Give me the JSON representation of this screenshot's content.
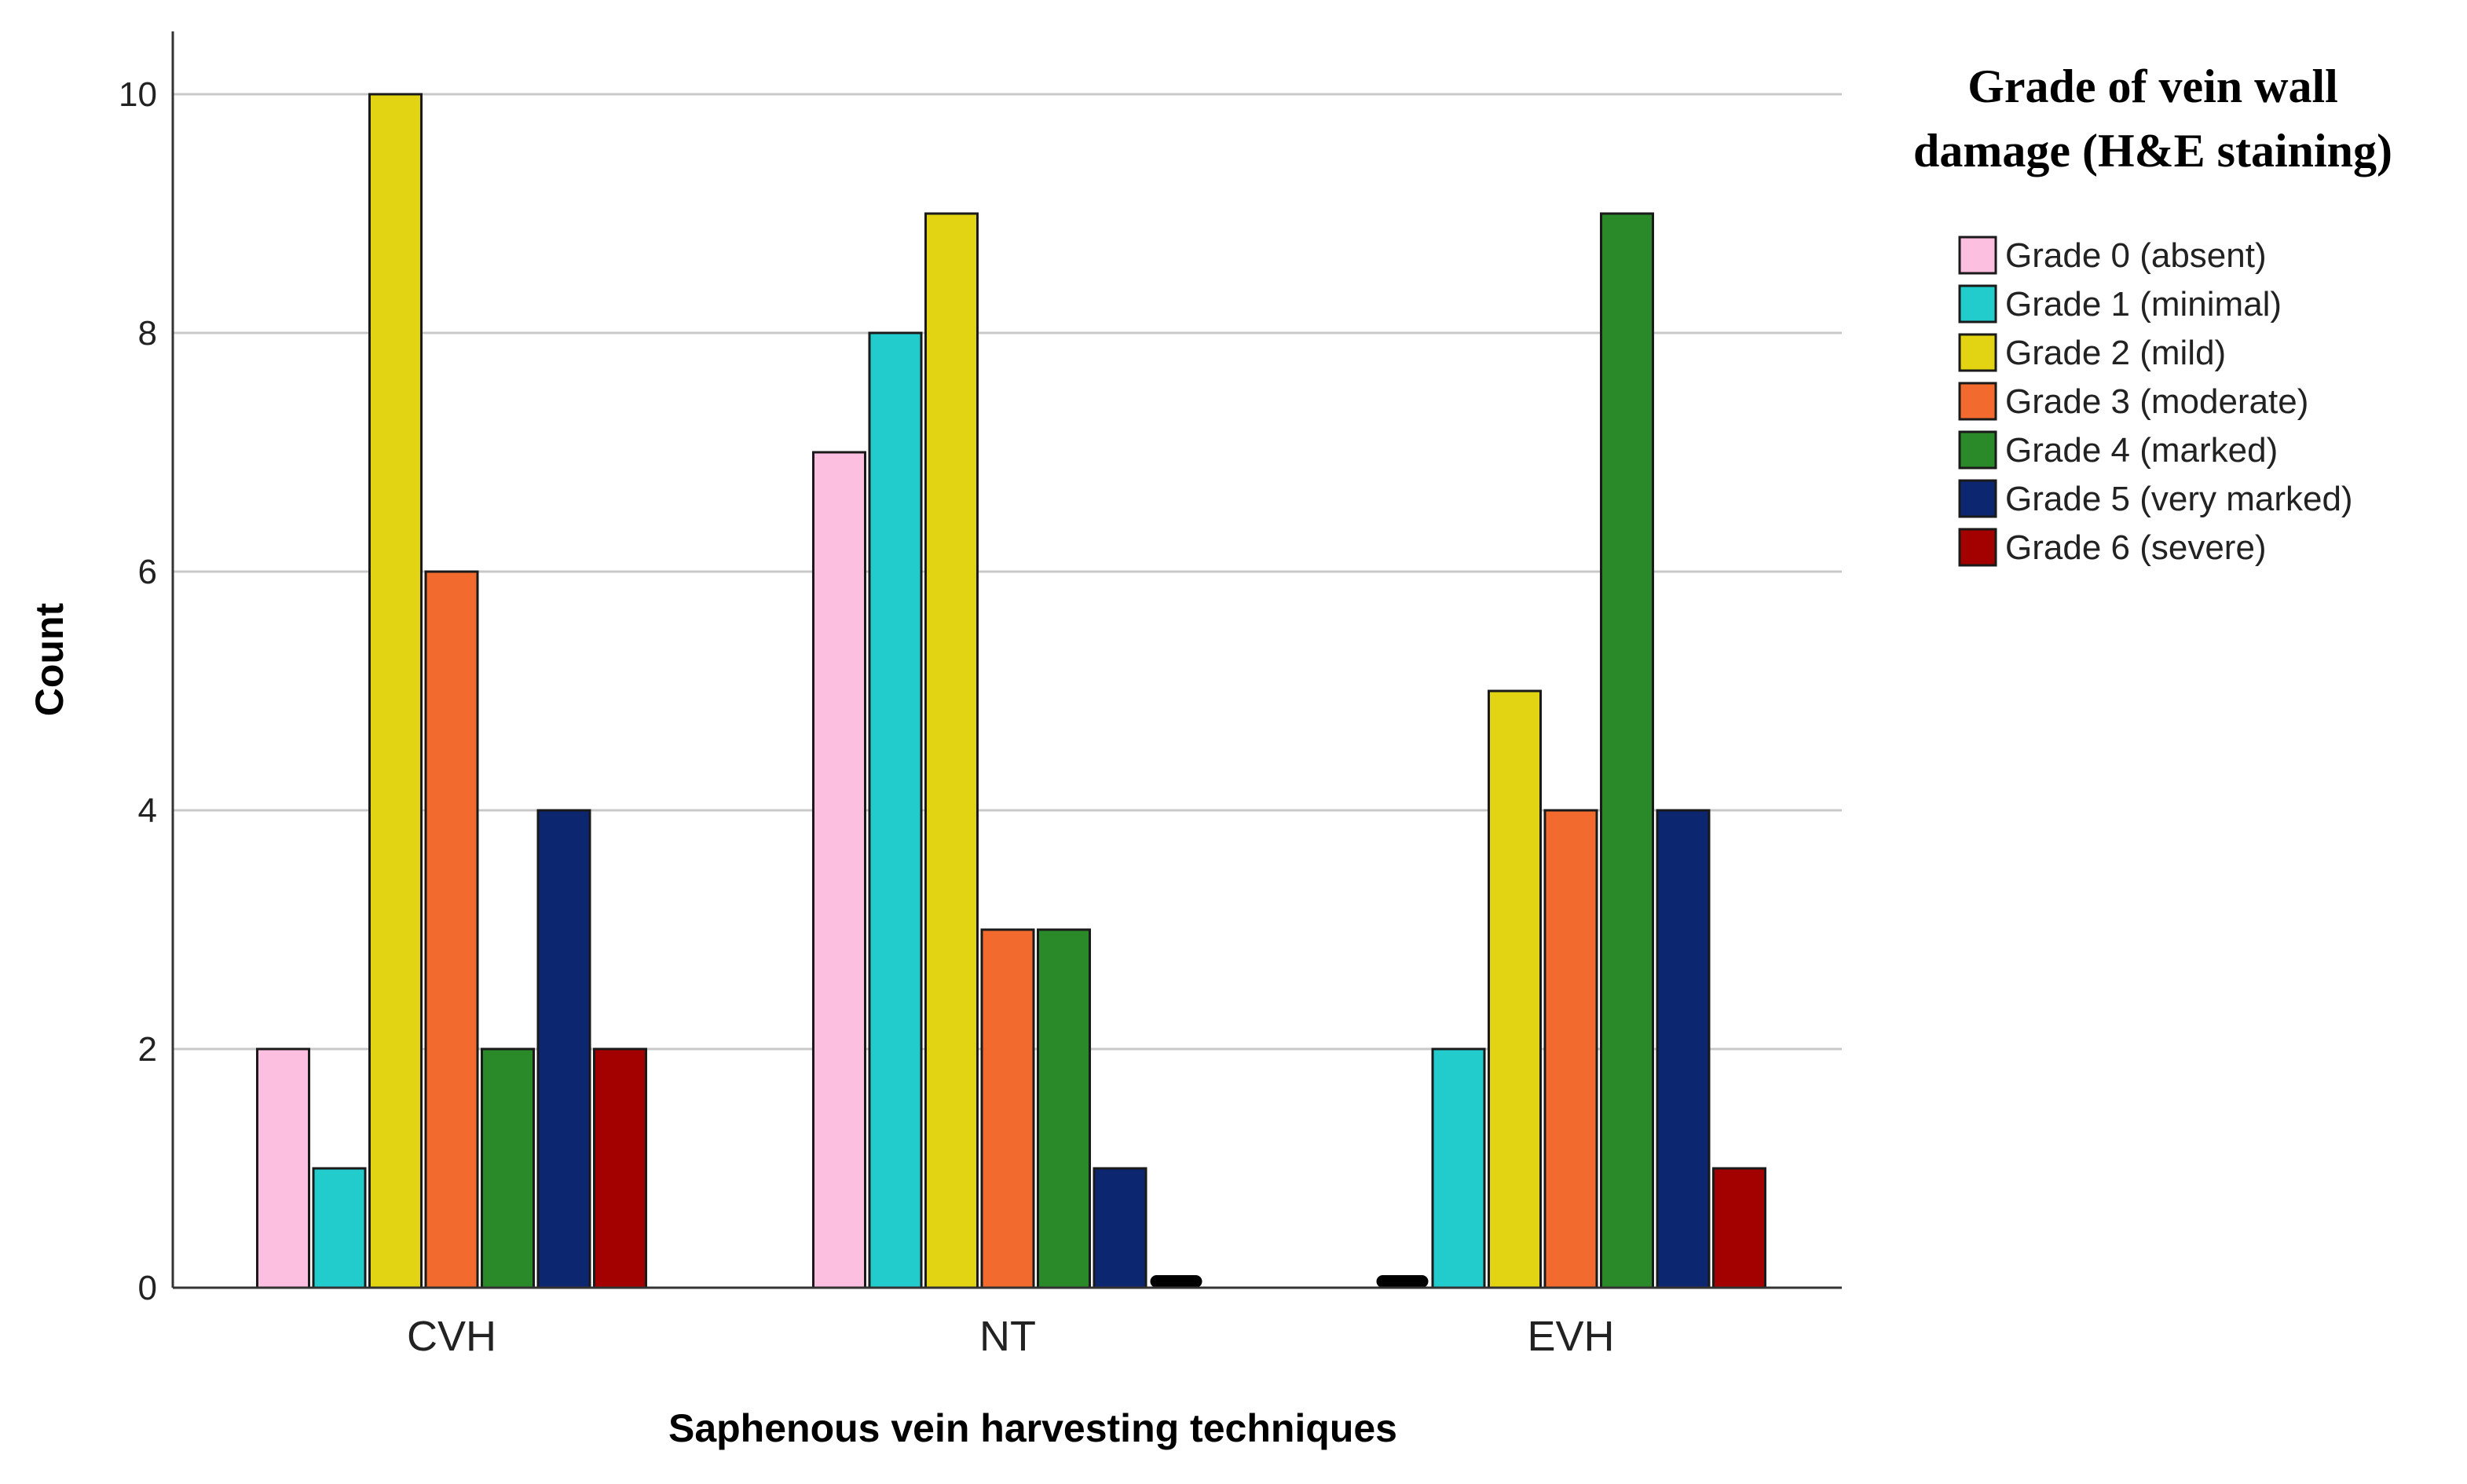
{
  "chart_data": {
    "type": "bar",
    "title": "",
    "xlabel": "Saphenous vein harvesting techniques",
    "ylabel": "Count",
    "ylim": [
      0,
      10
    ],
    "yticks": [
      0,
      2,
      4,
      6,
      8,
      10
    ],
    "grid": true,
    "categories": [
      "CVH",
      "NT",
      "EVH"
    ],
    "legend": {
      "title_lines": [
        "Grade of vein wall",
        "damage (H&E staining)"
      ],
      "placement": "right"
    },
    "series": [
      {
        "name": "Grade 0 (absent)",
        "color": "#FDBFE0",
        "values": [
          2,
          7,
          0
        ]
      },
      {
        "name": "Grade 1 (minimal)",
        "color": "#22CCCC",
        "values": [
          1,
          8,
          2
        ]
      },
      {
        "name": "Grade 2 (mild)",
        "color": "#E2D412",
        "values": [
          10,
          9,
          5
        ]
      },
      {
        "name": "Grade 3 (moderate)",
        "color": "#F26A2E",
        "values": [
          6,
          3,
          4
        ]
      },
      {
        "name": "Grade 4 (marked)",
        "color": "#2A8A2A",
        "values": [
          2,
          3,
          9
        ]
      },
      {
        "name": "Grade 5 (very marked)",
        "color": "#0C2670",
        "values": [
          4,
          1,
          4
        ]
      },
      {
        "name": "Grade 6 (severe)",
        "color": "#A30000",
        "values": [
          2,
          0,
          1
        ]
      }
    ]
  }
}
